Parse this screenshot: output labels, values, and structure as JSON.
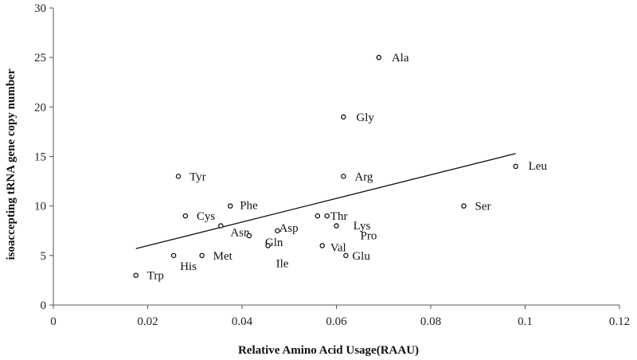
{
  "chart_data": {
    "type": "scatter",
    "title": "",
    "xlabel": "Relative Amino Acid Usage(RAAU)",
    "ylabel": "isoaccepting tRNA gene copy number",
    "xlim": [
      0,
      0.12
    ],
    "ylim": [
      0,
      30
    ],
    "x_ticks": [
      "0",
      "0.02",
      "0.04",
      "0.06",
      "0.08",
      "0.1",
      "0.12"
    ],
    "y_ticks": [
      "0",
      "5",
      "10",
      "15",
      "20",
      "25",
      "30"
    ],
    "grid": false,
    "legend": "none",
    "points": [
      {
        "label": "Ala",
        "x": 0.069,
        "y": 25
      },
      {
        "label": "Gly",
        "x": 0.0615,
        "y": 19
      },
      {
        "label": "Leu",
        "x": 0.098,
        "y": 14
      },
      {
        "label": "Tyr",
        "x": 0.0265,
        "y": 13
      },
      {
        "label": "Arg",
        "x": 0.0615,
        "y": 13
      },
      {
        "label": "Phe",
        "x": 0.0375,
        "y": 10
      },
      {
        "label": "Ser",
        "x": 0.087,
        "y": 10
      },
      {
        "label": "Cys",
        "x": 0.028,
        "y": 9
      },
      {
        "label": "Thr",
        "x": 0.056,
        "y": 9
      },
      {
        "label": "Lys",
        "x": 0.058,
        "y": 9
      },
      {
        "label": "Asn",
        "x": 0.0355,
        "y": 8
      },
      {
        "label": "Asp",
        "x": 0.0475,
        "y": 7.5
      },
      {
        "label": "Pro",
        "x": 0.06,
        "y": 8
      },
      {
        "label": "Gln",
        "x": 0.0415,
        "y": 7
      },
      {
        "label": "Ile",
        "x": 0.0455,
        "y": 6
      },
      {
        "label": "Val",
        "x": 0.057,
        "y": 6
      },
      {
        "label": "His",
        "x": 0.0255,
        "y": 5
      },
      {
        "label": "Met",
        "x": 0.0315,
        "y": 5
      },
      {
        "label": "Glu",
        "x": 0.062,
        "y": 5
      },
      {
        "label": "Trp",
        "x": 0.0175,
        "y": 3
      }
    ],
    "trendline": {
      "x": [
        0.0175,
        0.098
      ],
      "y": [
        5.7,
        15.3
      ]
    }
  }
}
